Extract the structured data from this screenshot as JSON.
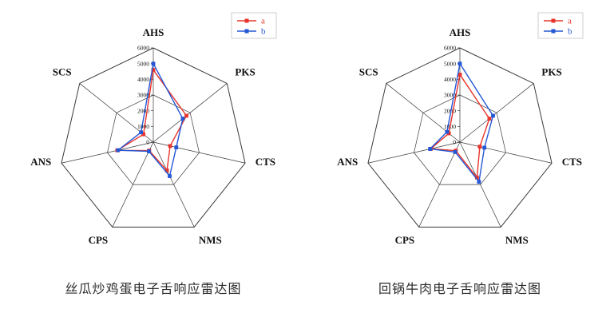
{
  "chart_data": [
    {
      "type": "radar",
      "title": "丝瓜炒鸡蛋电子舌响应雷达图",
      "categories": [
        "AHS",
        "PKS",
        "CTS",
        "NMS",
        "CPS",
        "ANS",
        "SCS"
      ],
      "series": [
        {
          "name": "a",
          "color": "#e8342c",
          "values": [
            4600,
            2700,
            1100,
            2000,
            600,
            2350,
            800
          ]
        },
        {
          "name": "b",
          "color": "#2457d6",
          "values": [
            5000,
            2400,
            1500,
            2400,
            650,
            2300,
            1000
          ]
        }
      ],
      "rmin": 0,
      "rmax": 6000,
      "rtick": 1000,
      "tick_labels": [
        "0",
        "1000",
        "2000",
        "3000",
        "4000",
        "5000",
        "6000"
      ],
      "grid_levels": [
        3000,
        6000
      ],
      "legend_position": "top-right",
      "legend_labels": [
        "a",
        "b"
      ],
      "axis_color": "#3a3a3a"
    },
    {
      "type": "radar",
      "title": "回锅牛肉电子舌响应雷达图",
      "categories": [
        "AHS",
        "PKS",
        "CTS",
        "NMS",
        "CPS",
        "ANS",
        "SCS"
      ],
      "series": [
        {
          "name": "a",
          "color": "#e8342c",
          "values": [
            4300,
            2400,
            1300,
            2500,
            600,
            1900,
            900
          ]
        },
        {
          "name": "b",
          "color": "#2457d6",
          "values": [
            5000,
            2700,
            1600,
            2800,
            700,
            1950,
            1050
          ]
        }
      ],
      "rmin": 0,
      "rmax": 6000,
      "rtick": 1000,
      "tick_labels": [
        "0",
        "1000",
        "2000",
        "3000",
        "4000",
        "5000",
        "6000"
      ],
      "grid_levels": [
        3000,
        6000
      ],
      "legend_position": "top-right",
      "legend_labels": [
        "a",
        "b"
      ],
      "axis_color": "#3a3a3a"
    }
  ]
}
